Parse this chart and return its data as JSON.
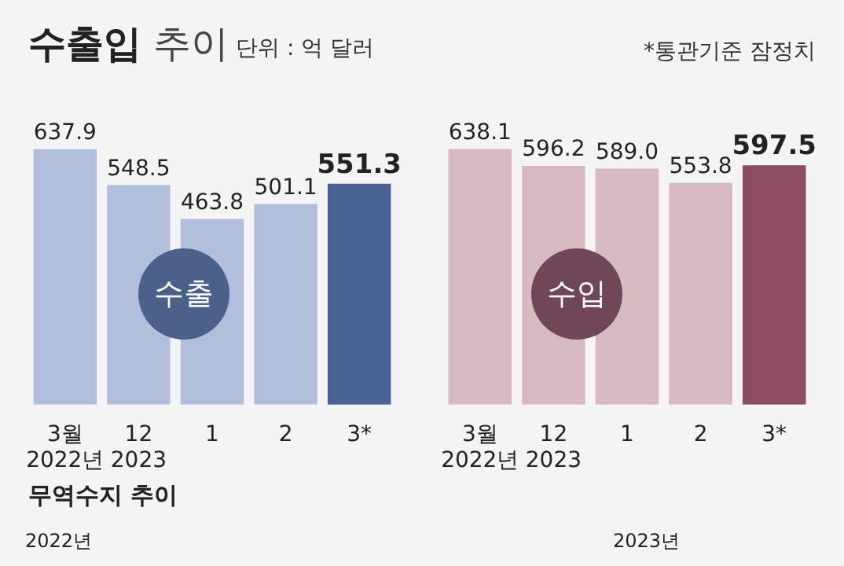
{
  "chart_data": [
    {
      "type": "bar",
      "title": "수출입 추이",
      "subtitle": "단위 : 억 달러",
      "annotations": [
        "수출",
        "*통관기준 잠정치"
      ],
      "categories": [
        "3월\n2022년",
        "12\n2023",
        "1",
        "2",
        "3*"
      ],
      "values": [
        637.9,
        548.5,
        463.8,
        501.1,
        551.3
      ],
      "value_labels": [
        "637.9",
        "548.5",
        "463.8",
        "501.1",
        "551.3"
      ],
      "colors": [
        "#b1bfdd",
        "#b1bfdd",
        "#b1bfdd",
        "#b1bfdd",
        "#4a6194"
      ]
    },
    {
      "type": "bar",
      "annotations": [
        "수입"
      ],
      "categories": [
        "3월\n2022년",
        "12\n2023",
        "1",
        "2",
        "3*"
      ],
      "values": [
        638.1,
        596.2,
        589.0,
        553.8,
        597.5
      ],
      "value_labels": [
        "638.1",
        "596.2",
        "589.0",
        "553.8",
        "597.5"
      ],
      "colors": [
        "#d7bac1",
        "#d7bac1",
        "#d7bac1",
        "#d7bac1",
        "#8b4d5f"
      ]
    },
    {
      "type": "other",
      "title": "무역수지 추이",
      "annotations": [
        "2022년",
        "2023년"
      ]
    }
  ]
}
